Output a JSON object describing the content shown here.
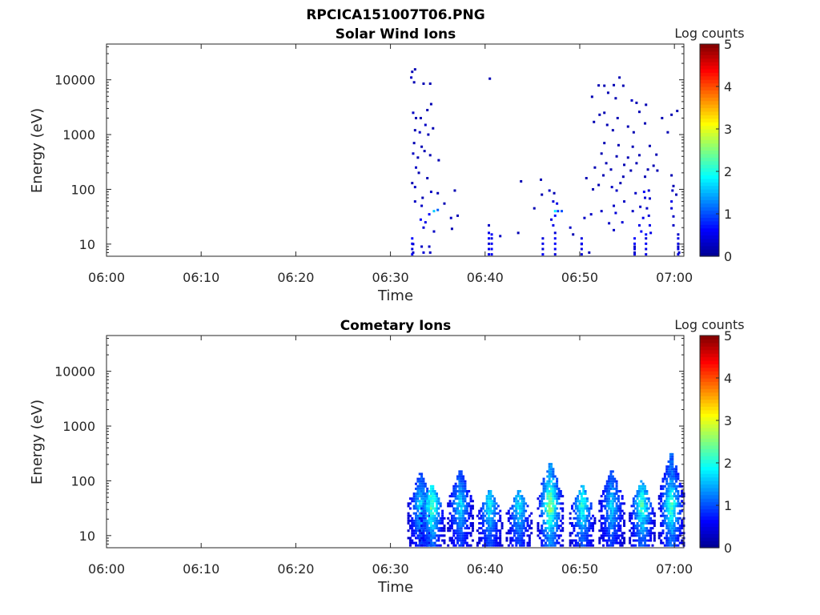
{
  "figure": {
    "title": "RPCICA151007T06.PNG"
  },
  "colors": {
    "colormap": [
      "#00008f",
      "#0000ff",
      "#0080ff",
      "#00ffff",
      "#80ff80",
      "#ffff00",
      "#ff8000",
      "#ff0000",
      "#800000"
    ],
    "axis": "#262626"
  },
  "chart_data": [
    {
      "type": "heatmap",
      "title": "Solar Wind Ions",
      "xlabel": "Time",
      "ylabel": "Energy (eV)",
      "xticks": [
        "06:00",
        "06:10",
        "06:20",
        "06:30",
        "06:40",
        "06:50",
        "07:00"
      ],
      "xlim_minutes": [
        0,
        61
      ],
      "yscale": "log",
      "ylim": [
        6,
        45000
      ],
      "yticks": [
        10,
        100,
        1000,
        10000
      ],
      "ytick_labels": [
        "10",
        "100",
        "1000",
        "10000"
      ],
      "colorbar": {
        "label": "Log counts",
        "min": 0,
        "max": 5,
        "ticks": [
          "0",
          "1",
          "2",
          "3",
          "4",
          "5"
        ]
      },
      "grid": false,
      "points": [
        [
          32.3,
          14000,
          0.2
        ],
        [
          32.6,
          15500,
          0.2
        ],
        [
          32.2,
          11000,
          0.3
        ],
        [
          32.5,
          9000,
          0.2
        ],
        [
          33.5,
          8500,
          0.2
        ],
        [
          34.2,
          8500,
          0.2
        ],
        [
          32.4,
          2500,
          0.3
        ],
        [
          32.7,
          2000,
          0.2
        ],
        [
          33.2,
          2000,
          0.2
        ],
        [
          33.9,
          2800,
          0.2
        ],
        [
          34.3,
          3600,
          0.2
        ],
        [
          33.7,
          1500,
          0.3
        ],
        [
          32.6,
          1200,
          0.2
        ],
        [
          33.1,
          1100,
          0.3
        ],
        [
          34.0,
          1000,
          0.2
        ],
        [
          34.5,
          1300,
          0.2
        ],
        [
          32.5,
          700,
          0.2
        ],
        [
          33.3,
          600,
          0.2
        ],
        [
          32.4,
          450,
          0.3
        ],
        [
          32.9,
          380,
          0.2
        ],
        [
          33.6,
          500,
          0.2
        ],
        [
          34.2,
          420,
          0.2
        ],
        [
          35.1,
          340,
          0.2
        ],
        [
          32.7,
          250,
          0.3
        ],
        [
          33.0,
          200,
          0.2
        ],
        [
          33.9,
          160,
          0.2
        ],
        [
          32.3,
          130,
          0.2
        ],
        [
          32.6,
          110,
          0.3
        ],
        [
          34.3,
          90,
          0.3
        ],
        [
          35.0,
          85,
          0.2
        ],
        [
          33.4,
          70,
          0.2
        ],
        [
          36.8,
          95,
          0.2
        ],
        [
          32.6,
          60,
          0.3
        ],
        [
          33.3,
          50,
          0.3
        ],
        [
          34.6,
          40,
          1.6
        ],
        [
          35.0,
          42,
          1.1
        ],
        [
          34.1,
          35,
          0.6
        ],
        [
          35.7,
          55,
          0.2
        ],
        [
          33.2,
          28,
          0.6
        ],
        [
          33.7,
          25,
          0.5
        ],
        [
          36.4,
          30,
          0.3
        ],
        [
          37.1,
          33,
          0.2
        ],
        [
          33.5,
          20,
          0.4
        ],
        [
          34.6,
          17,
          0.3
        ],
        [
          36.5,
          19,
          0.2
        ],
        [
          32.4,
          10,
          0.3
        ],
        [
          33.3,
          9,
          0.3
        ],
        [
          34.1,
          9,
          0.3
        ],
        [
          32.4,
          7,
          0.3
        ],
        [
          33.5,
          7,
          0.4
        ],
        [
          34.2,
          7,
          0.3
        ],
        [
          40.5,
          10500,
          0.2
        ],
        [
          40.4,
          16,
          0.5
        ],
        [
          40.7,
          15,
          0.6
        ],
        [
          40.4,
          22,
          0.3
        ],
        [
          43.5,
          16,
          0.2
        ],
        [
          41.6,
          14,
          0.3
        ],
        [
          43.8,
          140,
          0.2
        ],
        [
          45.9,
          150,
          0.2
        ],
        [
          46.8,
          95,
          0.3
        ],
        [
          47.3,
          85,
          0.2
        ],
        [
          46.0,
          80,
          0.2
        ],
        [
          47.2,
          60,
          0.4
        ],
        [
          47.6,
          55,
          0.5
        ],
        [
          45.2,
          45,
          0.2
        ],
        [
          47.4,
          40,
          1.8
        ],
        [
          47.7,
          40,
          0.9
        ],
        [
          48.1,
          40,
          1.0
        ],
        [
          47.4,
          33,
          0.7
        ],
        [
          47.0,
          28,
          0.4
        ],
        [
          47.2,
          22,
          0.5
        ],
        [
          47.4,
          16,
          0.4
        ],
        [
          49.0,
          20,
          0.3
        ],
        [
          49.3,
          15,
          0.2
        ],
        [
          51.0,
          7,
          0.2
        ],
        [
          50.5,
          30,
          0.3
        ],
        [
          51.2,
          35,
          0.3
        ],
        [
          52.0,
          7900,
          0.2
        ],
        [
          52.6,
          7800,
          0.2
        ],
        [
          53.6,
          8000,
          0.2
        ],
        [
          54.2,
          11000,
          0.2
        ],
        [
          54.6,
          7800,
          0.2
        ],
        [
          53.0,
          5800,
          0.2
        ],
        [
          51.3,
          4900,
          0.2
        ],
        [
          53.8,
          4600,
          0.2
        ],
        [
          55.5,
          4200,
          0.3
        ],
        [
          56.0,
          3800,
          0.2
        ],
        [
          57.0,
          3500,
          0.2
        ],
        [
          52.1,
          2300,
          0.2
        ],
        [
          52.6,
          2500,
          0.2
        ],
        [
          54.0,
          2000,
          0.2
        ],
        [
          56.3,
          2600,
          0.2
        ],
        [
          58.7,
          2000,
          0.2
        ],
        [
          59.7,
          2300,
          0.2
        ],
        [
          60.3,
          2700,
          0.2
        ],
        [
          51.5,
          1700,
          0.2
        ],
        [
          52.9,
          1500,
          0.2
        ],
        [
          55.1,
          1400,
          0.2
        ],
        [
          56.9,
          1600,
          0.2
        ],
        [
          53.5,
          1200,
          0.2
        ],
        [
          55.7,
          1100,
          0.2
        ],
        [
          59.3,
          1100,
          0.2
        ],
        [
          52.6,
          700,
          0.2
        ],
        [
          54.1,
          640,
          0.2
        ],
        [
          55.6,
          600,
          0.2
        ],
        [
          57.4,
          620,
          0.2
        ],
        [
          52.3,
          450,
          0.2
        ],
        [
          53.9,
          400,
          0.2
        ],
        [
          55.1,
          380,
          0.2
        ],
        [
          56.3,
          420,
          0.2
        ],
        [
          58.1,
          430,
          0.2
        ],
        [
          52.8,
          300,
          0.2
        ],
        [
          54.7,
          280,
          0.2
        ],
        [
          56.0,
          300,
          0.2
        ],
        [
          57.8,
          270,
          0.2
        ],
        [
          51.6,
          250,
          0.2
        ],
        [
          53.3,
          230,
          0.2
        ],
        [
          55.4,
          220,
          0.2
        ],
        [
          57.2,
          230,
          0.2
        ],
        [
          58.2,
          220,
          0.2
        ],
        [
          50.7,
          160,
          0.2
        ],
        [
          52.5,
          180,
          0.2
        ],
        [
          54.6,
          170,
          0.2
        ],
        [
          56.9,
          170,
          0.2
        ],
        [
          59.7,
          180,
          0.2
        ],
        [
          52.0,
          120,
          0.2
        ],
        [
          53.4,
          110,
          0.3
        ],
        [
          54.3,
          130,
          0.2
        ],
        [
          59.9,
          115,
          0.2
        ],
        [
          51.4,
          100,
          0.2
        ],
        [
          53.9,
          95,
          0.3
        ],
        [
          56.8,
          90,
          0.6
        ],
        [
          57.3,
          95,
          0.4
        ],
        [
          59.8,
          95,
          0.3
        ],
        [
          55.9,
          85,
          0.3
        ],
        [
          60.2,
          80,
          0.2
        ],
        [
          56.9,
          70,
          0.4
        ],
        [
          57.4,
          68,
          0.3
        ],
        [
          59.7,
          60,
          0.5
        ],
        [
          54.7,
          60,
          0.3
        ],
        [
          53.6,
          50,
          0.3
        ],
        [
          56.4,
          48,
          0.3
        ],
        [
          57.1,
          45,
          0.3
        ],
        [
          59.7,
          45,
          0.4
        ],
        [
          52.3,
          40,
          0.3
        ],
        [
          53.8,
          37,
          0.4
        ],
        [
          55.6,
          40,
          0.3
        ],
        [
          56.7,
          30,
          0.5
        ],
        [
          57.3,
          33,
          0.4
        ],
        [
          59.9,
          32,
          0.3
        ],
        [
          53.1,
          24,
          0.3
        ],
        [
          54.5,
          25,
          0.4
        ],
        [
          56.3,
          22,
          0.5
        ],
        [
          57.4,
          22,
          0.5
        ],
        [
          59.9,
          22,
          0.3
        ],
        [
          53.6,
          18,
          0.3
        ],
        [
          56.5,
          17,
          0.6
        ],
        [
          57.0,
          15,
          0.7
        ],
        [
          57.5,
          16,
          0.5
        ],
        [
          60.4,
          15,
          0.3
        ],
        [
          50.2,
          10,
          0.3
        ],
        [
          55.8,
          9,
          0.3
        ],
        [
          60.4,
          9,
          0.3
        ],
        [
          55.8,
          7,
          0.3
        ],
        [
          60.5,
          7,
          0.3
        ]
      ]
    },
    {
      "type": "heatmap",
      "title": "Cometary Ions",
      "xlabel": "Time",
      "ylabel": "Energy (eV)",
      "xticks": [
        "06:00",
        "06:10",
        "06:20",
        "06:30",
        "06:40",
        "06:50",
        "07:00"
      ],
      "xlim_minutes": [
        0,
        61
      ],
      "yscale": "log",
      "ylim": [
        6,
        45000
      ],
      "yticks": [
        10,
        100,
        1000,
        10000
      ],
      "ytick_labels": [
        "10",
        "100",
        "1000",
        "10000"
      ],
      "colorbar": {
        "label": "Log counts",
        "min": 0,
        "max": 5,
        "ticks": [
          "0",
          "1",
          "2",
          "3",
          "4",
          "5"
        ]
      },
      "grid": false,
      "bursts": [
        {
          "t": 33.2,
          "peak_e": 160,
          "c": 1.8
        },
        {
          "t": 34.4,
          "peak_e": 90,
          "c": 2.6
        },
        {
          "t": 37.4,
          "peak_e": 180,
          "c": 1.8
        },
        {
          "t": 40.5,
          "peak_e": 70,
          "c": 2.0
        },
        {
          "t": 43.6,
          "peak_e": 70,
          "c": 1.9
        },
        {
          "t": 46.9,
          "peak_e": 250,
          "c": 2.9
        },
        {
          "t": 50.3,
          "peak_e": 90,
          "c": 2.2
        },
        {
          "t": 53.4,
          "peak_e": 180,
          "c": 1.8
        },
        {
          "t": 56.6,
          "peak_e": 110,
          "c": 2.4
        },
        {
          "t": 59.7,
          "peak_e": 350,
          "c": 2.4
        }
      ]
    }
  ]
}
